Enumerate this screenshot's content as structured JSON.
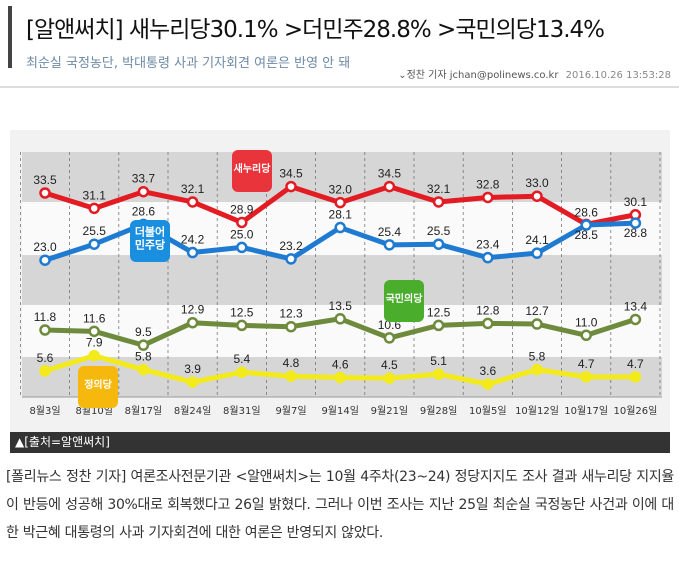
{
  "article": {
    "title": "[알앤써치] 새누리당30.1% >더민주28.8% >국민의당13.4%",
    "subtitle": "최순실 국정농단, 박대통령 사과 기자회견 여론은 반영 안 돼",
    "byline": "⌄정찬 기자",
    "email": "jchan@polinews.co.kr",
    "datetime": "2016.10.26 13:53:28",
    "caption": "▲[출처=알앤써치]",
    "body": "[폴리뉴스 정찬 기자] 여론조사전문기관 <알앤써치>는 10월 4주차(23~24) 정당지지도 조사 결과 새누리당 지지율이 반등에 성공해 30%대로 회복했다고 26일 밝혔다. 그러나 이번 조사는 지난 25일 최순실 국정농단 사건과 이에 대한 박근혜 대통령의 사과 기자회견에 대한 여론은 반영되지 않았다."
  },
  "chart_data": {
    "type": "line",
    "categories": [
      "8월3일",
      "8월10일",
      "8월17일",
      "8월24일",
      "8월31일",
      "9월7일",
      "9월14일",
      "9월21일",
      "9월28일",
      "10월5일",
      "10월12일",
      "10월17일",
      "10월26일"
    ],
    "grid": true,
    "axis_break": true,
    "series": [
      {
        "name": "새누리당",
        "color": "#e31b23",
        "values": [
          33.5,
          31.1,
          33.7,
          32.1,
          28.9,
          34.5,
          32.0,
          34.5,
          32.1,
          32.8,
          33.0,
          28.6,
          30.1
        ]
      },
      {
        "name": "더불어민주당",
        "color": "#1f7bd1",
        "values": [
          23.0,
          25.5,
          28.6,
          24.2,
          25.0,
          23.2,
          28.1,
          25.4,
          25.5,
          23.4,
          24.1,
          28.5,
          28.8
        ]
      },
      {
        "name": "국민의당",
        "color": "#6e8b3d",
        "values": [
          11.8,
          11.6,
          9.5,
          12.9,
          12.5,
          12.3,
          13.5,
          10.6,
          12.5,
          12.8,
          12.7,
          11.0,
          13.4
        ]
      },
      {
        "name": "정의당",
        "color": "#f3ea1c",
        "values": [
          5.6,
          7.9,
          5.8,
          3.9,
          5.4,
          4.8,
          4.6,
          4.5,
          5.1,
          3.6,
          5.8,
          4.7,
          4.7
        ]
      }
    ],
    "logos": [
      {
        "text": "새누리당",
        "color": "#e8343a"
      },
      {
        "text": "더불어 민주당",
        "color": "#1a8fe0"
      },
      {
        "text": "국민의당",
        "color": "#4aad2c"
      },
      {
        "text": "정의당",
        "color": "#f6b80c"
      }
    ]
  }
}
